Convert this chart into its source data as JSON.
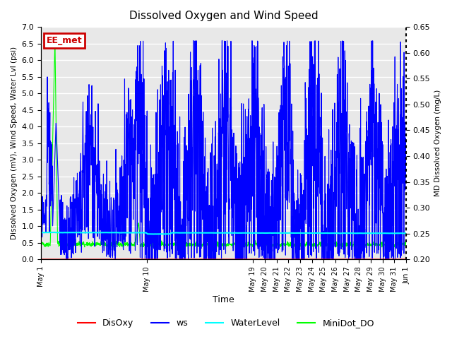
{
  "title": "Dissolved Oxygen and Wind Speed",
  "xlabel": "Time",
  "ylabel_left": "Dissolved Oxygen (mV), Wind Speed, Water Lvl (psi)",
  "ylabel_right": "MD Dissolved Oxygen (mg/L)",
  "ylim_left": [
    0.0,
    7.0
  ],
  "ylim_right": [
    0.2,
    0.65
  ],
  "annotation_text": "EE_met",
  "annotation_color": "#cc0000",
  "x_tick_positions": [
    0,
    9,
    18,
    19,
    20,
    21,
    22,
    23,
    24,
    25,
    26,
    27,
    28,
    29,
    30,
    31
  ],
  "x_tick_labels": [
    "May 1",
    "May 10",
    "May 19",
    "May 20",
    "May 21",
    "May 22",
    "May 23",
    "May 24",
    "May 25",
    "May 26",
    "May 27",
    "May 28",
    "May 29",
    "May 30",
    "May 31",
    "Jun 1"
  ],
  "bg_color": "#e8e8e8",
  "grid_color": "white",
  "series_colors": {
    "DisOxy": "red",
    "ws": "blue",
    "WaterLevel": "cyan",
    "MiniDot_DO": "lime"
  },
  "series_lw": {
    "DisOxy": 1.2,
    "ws": 0.8,
    "WaterLevel": 1.5,
    "MiniDot_DO": 0.8
  },
  "n_points": 2000,
  "xlim": [
    0,
    31
  ]
}
